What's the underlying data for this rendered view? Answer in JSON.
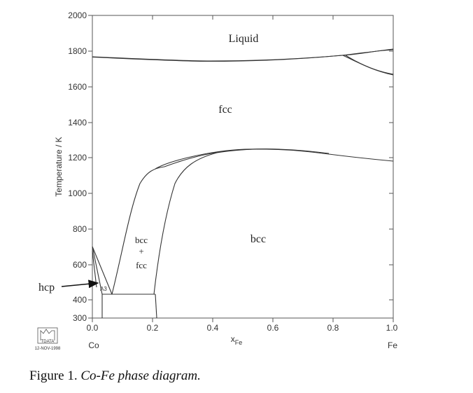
{
  "chart_data": {
    "type": "diagram",
    "y_axis": {
      "label": "Temperature / K",
      "ticks": [
        "2000",
        "1800",
        "1600",
        "1400",
        "1200",
        "1000",
        "800",
        "600",
        "400",
        "300"
      ]
    },
    "x_axis": {
      "label_main": "x",
      "label_sub": "Fe",
      "ticks": [
        "0.0",
        "0.2",
        "0.4",
        "0.6",
        "0.8",
        "1.0"
      ],
      "left_end": "Co",
      "right_end": "Fe"
    },
    "regions": {
      "liquid": "Liquid",
      "fcc": "fcc",
      "bcc": "bcc",
      "two_phase_top": "bcc",
      "two_phase_plus": "+",
      "two_phase_bottom": "fcc",
      "a3": "A3"
    },
    "annotation": {
      "hcp_label": "hcp"
    },
    "logo": {
      "line1": "TDATA",
      "line2": "12-NOV-1998"
    },
    "caption": {
      "prefix": "Figure 1.",
      "text": "Co-Fe phase diagram."
    }
  }
}
